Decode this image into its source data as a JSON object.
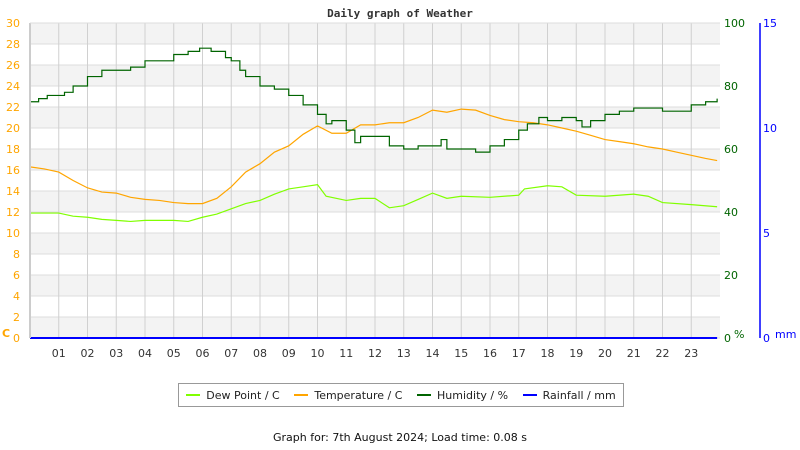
{
  "chart_data": {
    "type": "line",
    "title": "Daily graph of Weather",
    "x_tick_labels": [
      "01",
      "02",
      "03",
      "04",
      "05",
      "06",
      "07",
      "08",
      "09",
      "10",
      "11",
      "12",
      "13",
      "14",
      "15",
      "16",
      "17",
      "18",
      "19",
      "20",
      "21",
      "22",
      "23"
    ],
    "x_range_hours": [
      0,
      24
    ],
    "axes": {
      "left": {
        "unit_label": "C",
        "range": [
          0,
          30
        ],
        "ticks": [
          "0",
          "2",
          "4",
          "6",
          "8",
          "10",
          "12",
          "14",
          "16",
          "18",
          "20",
          "22",
          "24",
          "26",
          "28",
          "30"
        ],
        "color": "#ffa500"
      },
      "right_humidity": {
        "unit_label": "%",
        "range": [
          0,
          100
        ],
        "ticks": [
          "0",
          "20",
          "40",
          "60",
          "80",
          "100"
        ],
        "color": "#006400"
      },
      "right_rain": {
        "unit_label": "mm",
        "range": [
          0,
          15
        ],
        "ticks": [
          "0",
          "5",
          "10",
          "15"
        ],
        "color": "#0000ff"
      }
    },
    "grid": true,
    "legend_position": "bottom",
    "series": [
      {
        "name": "Dew Point / C",
        "axis": "left",
        "color": "#80ff00",
        "x": [
          0,
          1,
          1.5,
          2,
          2.5,
          3,
          3.5,
          4,
          5,
          5.5,
          6,
          6.5,
          7,
          7.5,
          8,
          8.5,
          9,
          9.5,
          10,
          10.3,
          11,
          11.5,
          12,
          12.5,
          13,
          13.5,
          14,
          14.5,
          15,
          16,
          17,
          17.2,
          18,
          18.5,
          19,
          20,
          21,
          21.5,
          22,
          23,
          23.9
        ],
        "y": [
          11.9,
          11.9,
          11.6,
          11.5,
          11.3,
          11.2,
          11.1,
          11.2,
          11.2,
          11.1,
          11.5,
          11.8,
          12.3,
          12.8,
          13.1,
          13.7,
          14.2,
          14.4,
          14.6,
          13.5,
          13.1,
          13.3,
          13.3,
          12.4,
          12.6,
          13.2,
          13.8,
          13.3,
          13.5,
          13.4,
          13.6,
          14.2,
          14.5,
          14.4,
          13.6,
          13.5,
          13.7,
          13.5,
          12.9,
          12.7,
          12.5
        ]
      },
      {
        "name": "Temperature / C",
        "axis": "left",
        "color": "#ffa500",
        "x": [
          0,
          0.5,
          1,
          1.5,
          2,
          2.5,
          3,
          3.5,
          4,
          4.5,
          5,
          5.5,
          6,
          6.5,
          7,
          7.5,
          8,
          8.5,
          9,
          9.5,
          10,
          10.5,
          11,
          11.5,
          12,
          12.5,
          13,
          13.5,
          14,
          14.5,
          15,
          15.5,
          16,
          16.5,
          17,
          17.5,
          18,
          18.5,
          19,
          19.5,
          20,
          20.5,
          21,
          21.5,
          22,
          22.5,
          23,
          23.5,
          23.9
        ],
        "y": [
          16.3,
          16.1,
          15.8,
          15.0,
          14.3,
          13.9,
          13.8,
          13.4,
          13.2,
          13.1,
          12.9,
          12.8,
          12.8,
          13.3,
          14.4,
          15.8,
          16.6,
          17.7,
          18.3,
          19.4,
          20.2,
          19.5,
          19.5,
          20.3,
          20.3,
          20.5,
          20.5,
          21.0,
          21.7,
          21.5,
          21.8,
          21.7,
          21.2,
          20.8,
          20.6,
          20.5,
          20.3,
          20.0,
          19.7,
          19.3,
          18.9,
          18.7,
          18.5,
          18.2,
          18.0,
          17.7,
          17.4,
          17.1,
          16.9
        ]
      },
      {
        "name": "Humidity / %",
        "axis": "right_humidity",
        "color": "#006400",
        "x": [
          0,
          0.3,
          0.6,
          1,
          1.2,
          1.5,
          2,
          2.5,
          3,
          3.5,
          4,
          4.5,
          5,
          5.5,
          5.9,
          6.3,
          6.8,
          7,
          7.3,
          7.5,
          8,
          8.5,
          9,
          9.5,
          10,
          10.3,
          10.5,
          11,
          11.3,
          11.5,
          12,
          12.5,
          13,
          13.5,
          14,
          14.3,
          14.5,
          15,
          15.5,
          16,
          16.5,
          17,
          17.3,
          17.7,
          18,
          18.5,
          19,
          19.2,
          19.5,
          20,
          20.5,
          21,
          21.5,
          22,
          22.5,
          23,
          23.5,
          23.9
        ],
        "y": [
          75,
          76,
          77,
          77,
          78,
          80,
          83,
          85,
          85,
          86,
          88,
          88,
          90,
          91,
          92,
          91,
          89,
          88,
          85,
          83,
          80,
          79,
          77,
          74,
          71,
          68,
          69,
          66,
          62,
          64,
          64,
          61,
          60,
          61,
          61,
          63,
          60,
          60,
          59,
          61,
          63,
          66,
          68,
          70,
          69,
          70,
          69,
          67,
          69,
          71,
          72,
          73,
          73,
          72,
          72,
          74,
          75,
          76
        ]
      },
      {
        "name": "Rainfall / mm",
        "axis": "right_rain",
        "color": "#0000ff",
        "x": [
          0,
          23.9
        ],
        "y": [
          0,
          0
        ]
      }
    ]
  },
  "footer": "Graph for: 7th August 2024; Load time: 0.08 s"
}
